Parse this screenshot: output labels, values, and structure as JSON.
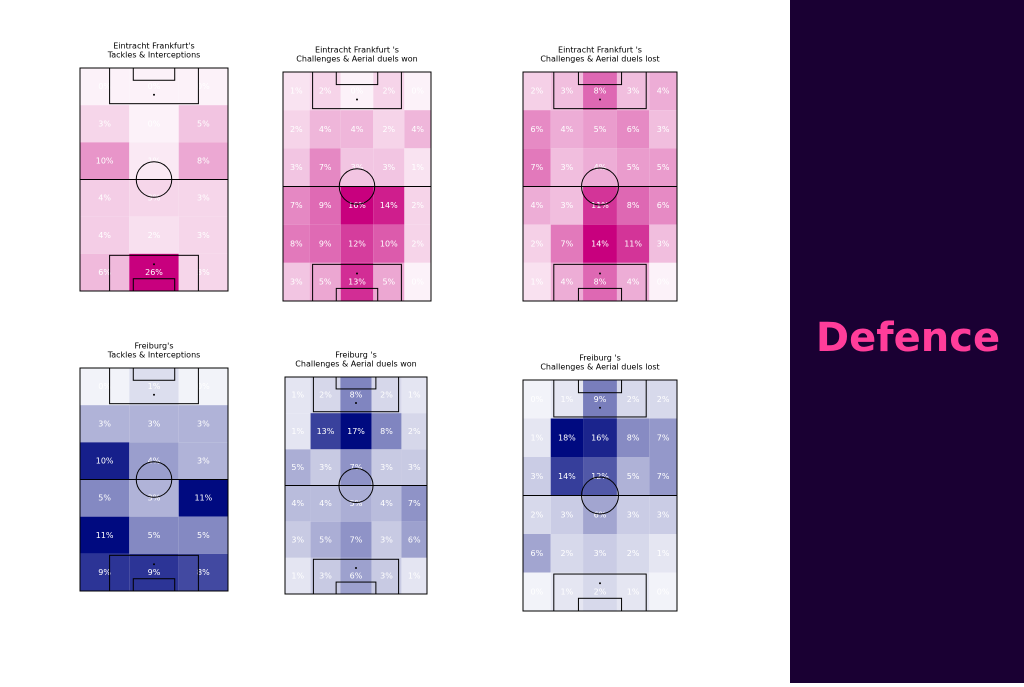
{
  "panel": {
    "title": "Defence"
  },
  "chart_data": [
    {
      "type": "heatmap",
      "title": "Eintracht Frankfurt's",
      "subtitle": "Tackles & Interceptions",
      "color": "#c8007e",
      "values": [
        [
          0,
          0,
          0
        ],
        [
          3,
          0,
          5
        ],
        [
          10,
          1,
          8
        ],
        [
          4,
          3,
          3
        ],
        [
          4,
          2,
          3
        ],
        [
          6,
          26,
          3
        ]
      ],
      "value_labels": [
        [
          "0%",
          "0%",
          "0%"
        ],
        [
          "3%",
          "0%",
          "5%"
        ],
        [
          "10%",
          "1%",
          "8%"
        ],
        [
          "4%",
          "3%",
          "3%"
        ],
        [
          "4%",
          "2%",
          "3%"
        ],
        [
          "6%",
          "26%",
          "3%"
        ]
      ]
    },
    {
      "type": "heatmap",
      "title": "Eintracht Frankfurt 's",
      "subtitle": "Challenges & Aerial duels won",
      "color": "#c8007e",
      "values": [
        [
          1,
          2,
          0,
          2,
          0
        ],
        [
          2,
          4,
          4,
          2,
          4
        ],
        [
          3,
          7,
          3,
          3,
          1
        ],
        [
          7,
          9,
          16,
          14,
          2
        ],
        [
          8,
          9,
          12,
          10,
          2
        ],
        [
          3,
          5,
          13,
          5,
          0
        ]
      ],
      "value_labels": [
        [
          "1%",
          "2%",
          "0%",
          "2%",
          "0%"
        ],
        [
          "2%",
          "4%",
          "4%",
          "2%",
          "4%"
        ],
        [
          "3%",
          "7%",
          "3%",
          "3%",
          "1%"
        ],
        [
          "7%",
          "9%",
          "16%",
          "14%",
          "2%"
        ],
        [
          "8%",
          "9%",
          "12%",
          "10%",
          "2%"
        ],
        [
          "3%",
          "5%",
          "13%",
          "5%",
          "0%"
        ]
      ]
    },
    {
      "type": "heatmap",
      "title": "Eintracht Frankfurt 's",
      "subtitle": "Challenges & Aerial duels lost",
      "color": "#c8007e",
      "values": [
        [
          2,
          3,
          8,
          3,
          4
        ],
        [
          6,
          4,
          5,
          6,
          3
        ],
        [
          7,
          3,
          4,
          5,
          5
        ],
        [
          4,
          3,
          11,
          8,
          6
        ],
        [
          2,
          7,
          14,
          11,
          3
        ],
        [
          1,
          4,
          8,
          4,
          0
        ]
      ],
      "value_labels": [
        [
          "2%",
          "3%",
          "8%",
          "3%",
          "4%"
        ],
        [
          "6%",
          "4%",
          "5%",
          "6%",
          "3%"
        ],
        [
          "7%",
          "3%",
          "4%",
          "5%",
          "5%"
        ],
        [
          "4%",
          "3%",
          "11%",
          "8%",
          "6%"
        ],
        [
          "2%",
          "7%",
          "14%",
          "11%",
          "3%"
        ],
        [
          "1%",
          "4%",
          "8%",
          "4%",
          "0%"
        ]
      ]
    },
    {
      "type": "heatmap",
      "title": "Freiburg's",
      "subtitle": "Tackles & Interceptions",
      "color": "#000a80",
      "values": [
        [
          0,
          1,
          0
        ],
        [
          3,
          3,
          3
        ],
        [
          10,
          4,
          3
        ],
        [
          5,
          3,
          11
        ],
        [
          11,
          5,
          5
        ],
        [
          9,
          9,
          8
        ]
      ],
      "value_labels": [
        [
          "0%",
          "1%",
          "0%"
        ],
        [
          "3%",
          "3%",
          "3%"
        ],
        [
          "10%",
          "4%",
          "3%"
        ],
        [
          "5%",
          "3%",
          "11%"
        ],
        [
          "11%",
          "5%",
          "5%"
        ],
        [
          "9%",
          "9%",
          "8%"
        ]
      ]
    },
    {
      "type": "heatmap",
      "title": "Freiburg 's",
      "subtitle": "Challenges & Aerial duels won",
      "color": "#000a80",
      "values": [
        [
          1,
          2,
          8,
          2,
          1
        ],
        [
          1,
          13,
          17,
          8,
          2
        ],
        [
          5,
          3,
          7,
          3,
          3
        ],
        [
          4,
          4,
          5,
          4,
          7
        ],
        [
          3,
          5,
          7,
          3,
          6
        ],
        [
          1,
          3,
          6,
          3,
          1
        ]
      ],
      "value_labels": [
        [
          "1%",
          "2%",
          "8%",
          "2%",
          "1%"
        ],
        [
          "1%",
          "13%",
          "17%",
          "8%",
          "2%"
        ],
        [
          "5%",
          "3%",
          "7%",
          "3%",
          "3%"
        ],
        [
          "4%",
          "4%",
          "5%",
          "4%",
          "7%"
        ],
        [
          "3%",
          "5%",
          "7%",
          "3%",
          "6%"
        ],
        [
          "1%",
          "3%",
          "6%",
          "3%",
          "1%"
        ]
      ]
    },
    {
      "type": "heatmap",
      "title": "Freiburg 's",
      "subtitle": "Challenges & Aerial duels lost",
      "color": "#000a80",
      "values": [
        [
          0,
          1,
          9,
          2,
          2
        ],
        [
          1,
          18,
          16,
          8,
          7
        ],
        [
          3,
          14,
          12,
          5,
          7
        ],
        [
          2,
          3,
          6,
          3,
          3
        ],
        [
          6,
          2,
          3,
          2,
          1
        ],
        [
          0,
          1,
          2,
          1,
          0
        ]
      ],
      "value_labels": [
        [
          "0%",
          "1%",
          "9%",
          "2%",
          "2%"
        ],
        [
          "1%",
          "18%",
          "16%",
          "8%",
          "7%"
        ],
        [
          "3%",
          "14%",
          "12%",
          "5%",
          "7%"
        ],
        [
          "2%",
          "3%",
          "6%",
          "3%",
          "3%"
        ],
        [
          "6%",
          "2%",
          "3%",
          "2%",
          "1%"
        ],
        [
          "0%",
          "1%",
          "2%",
          "1%",
          "0%"
        ]
      ]
    }
  ]
}
